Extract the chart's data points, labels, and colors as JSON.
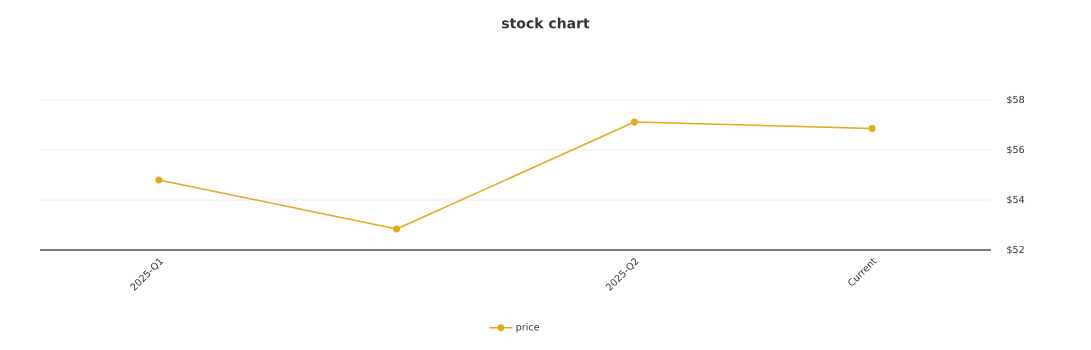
{
  "chart_data": {
    "type": "line",
    "title": "stock chart",
    "categories": [
      "2025-Q1",
      null,
      "2025-Q2",
      "Current"
    ],
    "series": [
      {
        "name": "price",
        "color": "#e3a918",
        "values": [
          54.8,
          52.84,
          57.12,
          56.86
        ]
      }
    ],
    "ylim": [
      52,
      58
    ],
    "yticks": [
      {
        "value": 52,
        "label": "$52"
      },
      {
        "value": 54,
        "label": "$54"
      },
      {
        "value": 56,
        "label": "$56"
      },
      {
        "value": 58,
        "label": "$58"
      }
    ],
    "grid": "y",
    "legend": "bottom",
    "marker": "circle"
  }
}
